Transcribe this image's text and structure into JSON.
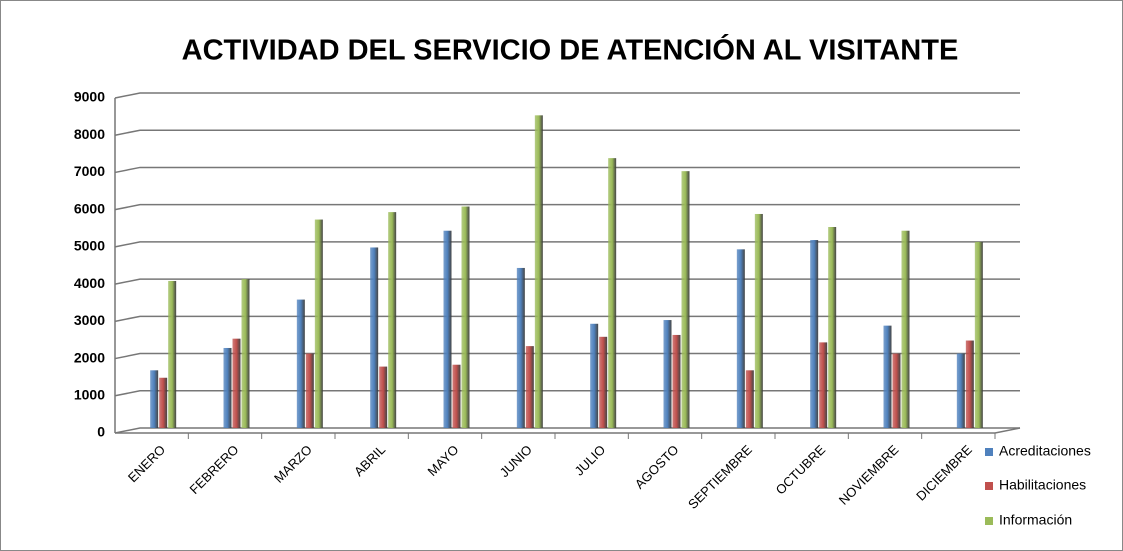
{
  "chart_data": {
    "type": "bar",
    "title": "ACTIVIDAD DEL SERVICIO DE ATENCIÓN AL VISITANTE",
    "categories": [
      "ENERO",
      "FEBRERO",
      "MARZO",
      "ABRIL",
      "MAYO",
      "JUNIO",
      "JULIO",
      "AGOSTO",
      "SEPTIEMBRE",
      "OCTUBRE",
      "NOVIEMBRE",
      "DICIEMBRE"
    ],
    "series": [
      {
        "name": "Acreditaciones",
        "color": "#4f81bd",
        "values": [
          1550,
          2150,
          3450,
          4850,
          5300,
          4300,
          2800,
          2900,
          4800,
          5050,
          2750,
          2000
        ]
      },
      {
        "name": "Habilitaciones",
        "color": "#c0504d",
        "values": [
          1350,
          2400,
          2000,
          1650,
          1700,
          2200,
          2450,
          2500,
          1550,
          2300,
          2000,
          2350
        ]
      },
      {
        "name": "Información",
        "color": "#9bbb59",
        "values": [
          3950,
          4000,
          5600,
          5800,
          5950,
          8400,
          7250,
          6900,
          5750,
          5400,
          5300,
          5000
        ]
      }
    ],
    "ylim": [
      0,
      9000
    ],
    "yticks": [
      0,
      1000,
      2000,
      3000,
      4000,
      5000,
      6000,
      7000,
      8000,
      9000
    ],
    "grid": true,
    "legend": "right"
  }
}
